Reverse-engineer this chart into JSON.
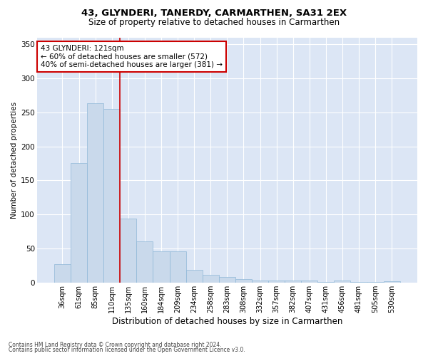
{
  "title": "43, GLYNDERI, TANERDY, CARMARTHEN, SA31 2EX",
  "subtitle": "Size of property relative to detached houses in Carmarthen",
  "xlabel": "Distribution of detached houses by size in Carmarthen",
  "ylabel": "Number of detached properties",
  "footnote1": "Contains HM Land Registry data © Crown copyright and database right 2024.",
  "footnote2": "Contains public sector information licensed under the Open Government Licence v3.0.",
  "categories": [
    "36sqm",
    "61sqm",
    "85sqm",
    "110sqm",
    "135sqm",
    "160sqm",
    "184sqm",
    "209sqm",
    "234sqm",
    "258sqm",
    "283sqm",
    "308sqm",
    "332sqm",
    "357sqm",
    "382sqm",
    "407sqm",
    "431sqm",
    "456sqm",
    "481sqm",
    "505sqm",
    "530sqm"
  ],
  "values": [
    27,
    175,
    263,
    255,
    94,
    60,
    46,
    46,
    19,
    11,
    8,
    5,
    3,
    3,
    3,
    3,
    1,
    3,
    1,
    1,
    2
  ],
  "bar_color": "#c9d9eb",
  "bar_edge_color": "#8fb8d8",
  "vline_color": "#cc0000",
  "vline_x": 3.5,
  "annotation_label": "43 GLYNDERI: 121sqm",
  "annotation_line1": "← 60% of detached houses are smaller (572)",
  "annotation_line2": "40% of semi-detached houses are larger (381) →",
  "annotation_box_facecolor": "#ffffff",
  "annotation_box_edgecolor": "#cc0000",
  "title_fontsize": 9.5,
  "subtitle_fontsize": 8.5,
  "tick_fontsize": 7,
  "annotation_fontsize": 7.5,
  "ylabel_fontsize": 7.5,
  "xlabel_fontsize": 8.5,
  "footnote_fontsize": 5.5,
  "ylim": [
    0,
    360
  ],
  "yticks": [
    0,
    50,
    100,
    150,
    200,
    250,
    300,
    350
  ],
  "grid_color": "#ffffff",
  "plot_bgcolor": "#dce6f5",
  "fig_bgcolor": "#ffffff"
}
